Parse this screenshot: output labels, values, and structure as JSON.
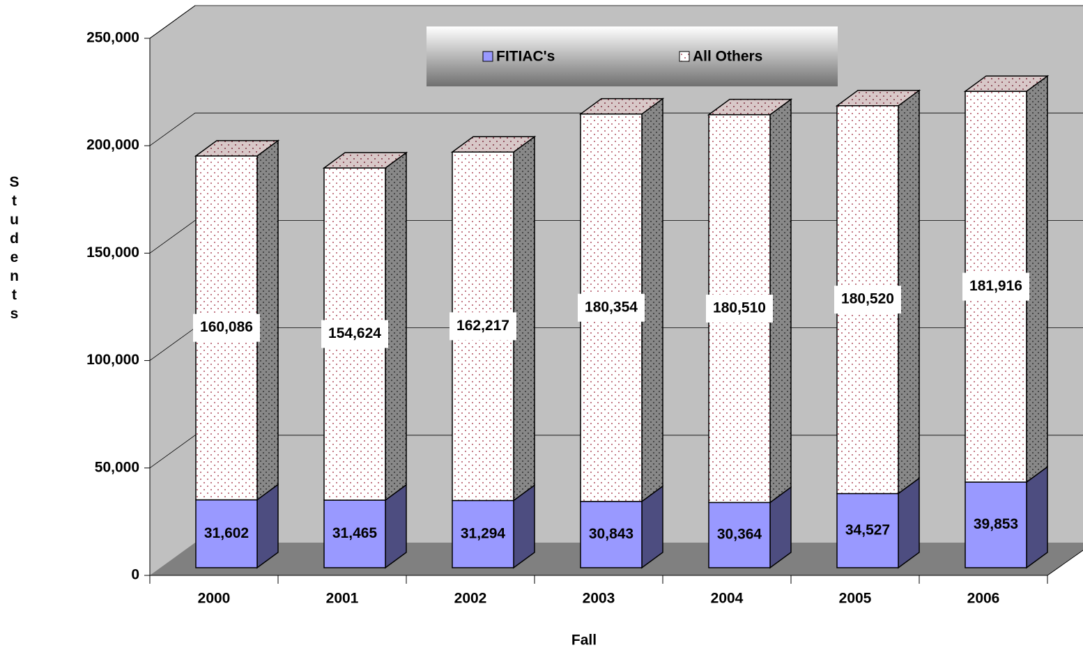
{
  "chart_data": {
    "type": "bar",
    "stacked": true,
    "x_label": "Fall",
    "y_label": "Students",
    "categories": [
      "2000",
      "2001",
      "2002",
      "2003",
      "2004",
      "2005",
      "2006"
    ],
    "series": [
      {
        "name": "FITIAC's",
        "color": "#9999ff",
        "values": [
          31602,
          31465,
          31294,
          30843,
          30364,
          34527,
          39853
        ],
        "value_labels": [
          "31,602",
          "31,465",
          "31,294",
          "30,843",
          "30,364",
          "34,527",
          "39,853"
        ]
      },
      {
        "name": "All Others",
        "color": "#ffffff",
        "values": [
          160086,
          154624,
          162217,
          180354,
          180510,
          180520,
          181916
        ],
        "value_labels": [
          "160,086",
          "154,624",
          "162,217",
          "180,354",
          "180,510",
          "180,520",
          "181,916"
        ]
      }
    ],
    "ylim": [
      0,
      250000
    ],
    "yticks": [
      0,
      {
        "value": 50000,
        "label": "50,000"
      },
      {
        "value": 100000,
        "label": "100,000"
      },
      {
        "value": 150000,
        "label": "150,000"
      },
      {
        "value": 200000,
        "label": "200,000"
      },
      {
        "value": 250000,
        "label": "250,000"
      }
    ],
    "grid": true,
    "legend": "top"
  }
}
